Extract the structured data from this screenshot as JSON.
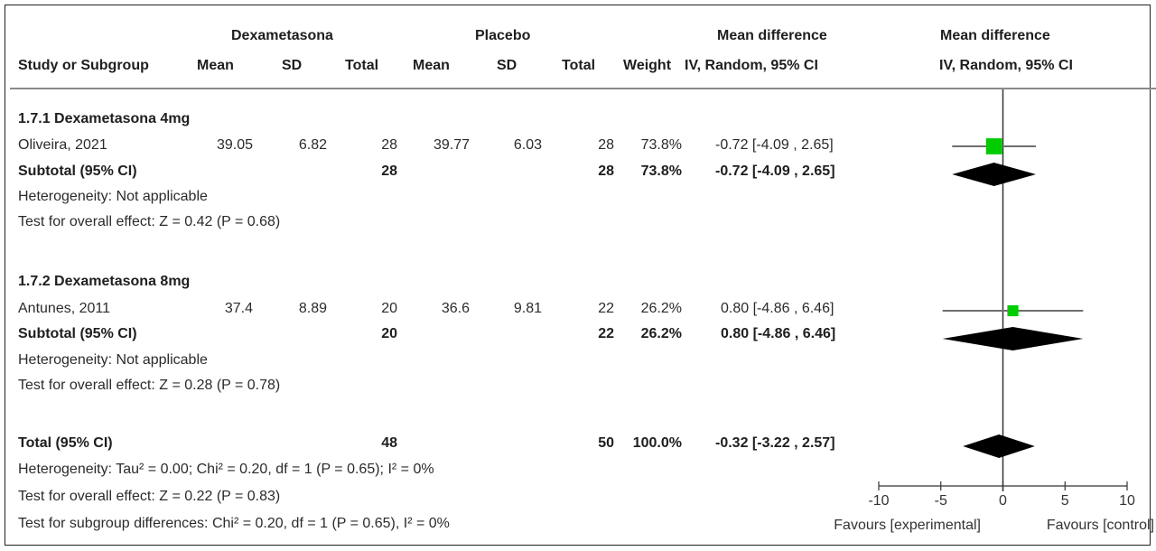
{
  "header": {
    "group_exp": "Dexametasona",
    "group_ctrl": "Placebo",
    "col_md": "Mean difference",
    "col_md_plot": "Mean difference",
    "study": "Study or Subgroup",
    "mean": "Mean",
    "sd": "SD",
    "total": "Total",
    "mean2": "Mean",
    "sd2": "SD",
    "total2": "Total",
    "weight": "Weight",
    "method": "IV, Random, 95% CI",
    "method_plot": "IV, Random, 95% CI"
  },
  "subgroup1": {
    "title": "1.7.1 Dexametasona 4mg",
    "study": {
      "name": "Oliveira, 2021",
      "mean_e": "39.05",
      "sd_e": "6.82",
      "total_e": "28",
      "mean_c": "39.77",
      "sd_c": "6.03",
      "total_c": "28",
      "weight": "73.8%",
      "ci": "-0.72 [-4.09 , 2.65]"
    },
    "subtotal": {
      "label": "Subtotal (95% CI)",
      "total_e": "28",
      "total_c": "28",
      "weight": "73.8%",
      "ci": "-0.72 [-4.09 , 2.65]"
    },
    "heterogeneity": "Heterogeneity: Not applicable",
    "overall": "Test for overall effect: Z = 0.42 (P = 0.68)"
  },
  "subgroup2": {
    "title": "1.7.2 Dexametasona 8mg",
    "study": {
      "name": "Antunes, 2011",
      "mean_e": "37.4",
      "sd_e": "8.89",
      "total_e": "20",
      "mean_c": "36.6",
      "sd_c": "9.81",
      "total_c": "22",
      "weight": "26.2%",
      "ci": "0.80 [-4.86 , 6.46]"
    },
    "subtotal": {
      "label": "Subtotal (95% CI)",
      "total_e": "20",
      "total_c": "22",
      "weight": "26.2%",
      "ci": "0.80 [-4.86 , 6.46]"
    },
    "heterogeneity": "Heterogeneity: Not applicable",
    "overall": "Test for overall effect: Z = 0.28 (P = 0.78)"
  },
  "total": {
    "label": "Total (95% CI)",
    "total_e": "48",
    "total_c": "50",
    "weight": "100.0%",
    "ci": "-0.32 [-3.22 , 2.57]",
    "heterogeneity": "Heterogeneity: Tau² = 0.00; Chi² = 0.20, df = 1 (P = 0.65); I² = 0%",
    "overall": "Test for overall effect: Z = 0.22 (P = 0.83)",
    "subgroup_diff": "Test for subgroup differences: Chi² = 0.20, df = 1 (P = 0.65), I² = 0%"
  },
  "chart_data": {
    "type": "forest",
    "xlim": [
      -10,
      10
    ],
    "ticks": [
      -10,
      -5,
      0,
      5,
      10
    ],
    "tick_labels": [
      "-10",
      "-5",
      "0",
      "5",
      "10"
    ],
    "favours_left": "Favours [experimental]",
    "favours_right": "Favours [control]",
    "marker_color": "#00cc00",
    "studies": [
      {
        "name": "Oliveira, 2021",
        "estimate": -0.72,
        "lower": -4.09,
        "upper": 2.65,
        "weight": 73.8
      },
      {
        "name": "Antunes, 2011",
        "estimate": 0.8,
        "lower": -4.86,
        "upper": 6.46,
        "weight": 26.2
      }
    ],
    "diamonds": [
      {
        "name": "Subtotal 1.7.1",
        "estimate": -0.72,
        "lower": -4.09,
        "upper": 2.65
      },
      {
        "name": "Subtotal 1.7.2",
        "estimate": 0.8,
        "lower": -4.86,
        "upper": 6.46
      },
      {
        "name": "Total",
        "estimate": -0.32,
        "lower": -3.22,
        "upper": 2.57
      }
    ]
  }
}
